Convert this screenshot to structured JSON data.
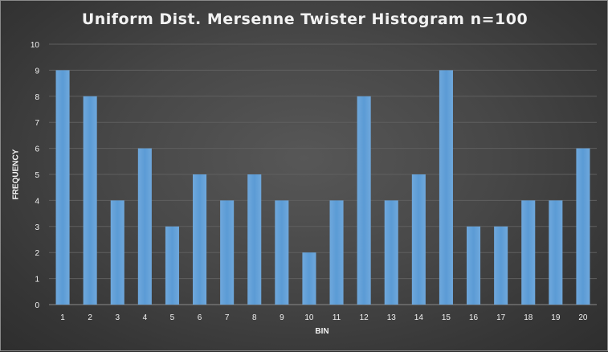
{
  "chart_data": {
    "type": "bar",
    "title": "Uniform Dist. Mersenne Twister Histogram n=100",
    "xlabel": "BIN",
    "ylabel": "FREQUENCY",
    "categories": [
      "1",
      "2",
      "3",
      "4",
      "5",
      "6",
      "7",
      "8",
      "9",
      "10",
      "11",
      "12",
      "13",
      "14",
      "15",
      "16",
      "17",
      "18",
      "19",
      "20"
    ],
    "values": [
      9,
      8,
      4,
      6,
      3,
      5,
      4,
      5,
      4,
      2,
      4,
      8,
      4,
      5,
      9,
      3,
      3,
      4,
      4,
      6
    ],
    "yticks": [
      "0",
      "1",
      "2",
      "3",
      "4",
      "5",
      "6",
      "7",
      "8",
      "9",
      "10"
    ],
    "ylim": [
      0,
      10
    ],
    "grid": true,
    "legend": "none",
    "bar_color": "#5b9bd5",
    "bar_color_light": "#6fa8dc",
    "grid_color": "#5f5f5f",
    "text_color": "#f2f2f2"
  }
}
